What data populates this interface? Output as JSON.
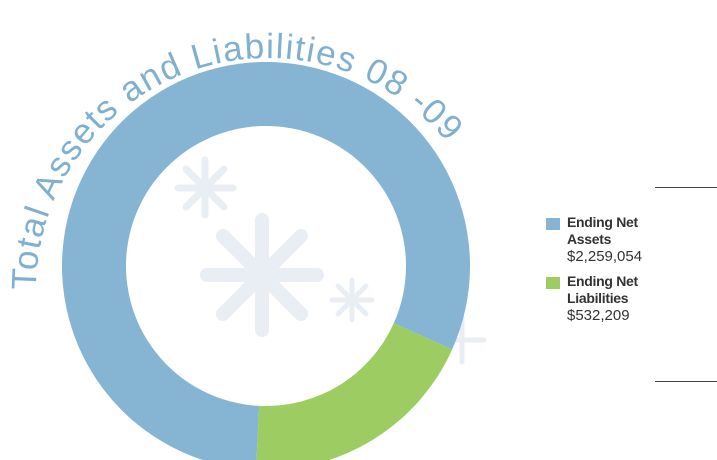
{
  "chart_data": {
    "type": "donut",
    "title": "Total Assets and Liabilities 08 -09",
    "series": [
      {
        "name": "Ending Net Assets",
        "color": "#86b4d3",
        "values": [
          2259054
        ],
        "value_labels": [
          "$2,259,054"
        ]
      },
      {
        "name": "Ending Net Liabilities",
        "color": "#9dcd62",
        "values": [
          532209
        ],
        "value_labels": [
          "$532,209"
        ]
      }
    ],
    "legend": "right"
  }
}
